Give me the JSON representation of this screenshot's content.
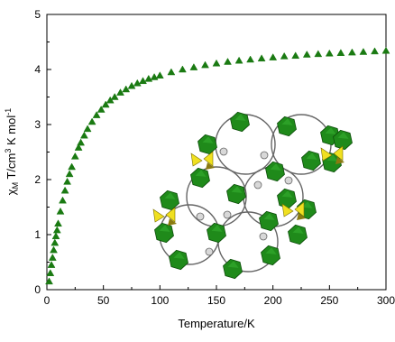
{
  "chart_data": {
    "type": "scatter",
    "title": "",
    "xlabel": "Temperature/K",
    "ylabel_parts": {
      "chi": "χ",
      "sub": "M",
      "mid": " T/cm",
      "sup3": "3",
      "tail": " K mol",
      "supm1": "-1"
    },
    "xlim": [
      0,
      300
    ],
    "ylim": [
      0,
      5
    ],
    "x_ticks": [
      "0",
      "50",
      "100",
      "150",
      "200",
      "250",
      "300"
    ],
    "y_ticks": [
      "0",
      "1",
      "2",
      "3",
      "4",
      "5"
    ],
    "grid": false,
    "legend": "none",
    "marker": "triangle",
    "series": [
      {
        "color": "#1a7a12",
        "x": [
          2,
          3,
          4,
          5,
          6,
          7,
          8,
          9,
          10,
          12,
          14,
          16,
          18,
          20,
          22,
          25,
          28,
          30,
          33,
          36,
          40,
          44,
          48,
          52,
          56,
          60,
          65,
          70,
          75,
          80,
          85,
          90,
          95,
          100,
          110,
          120,
          130,
          140,
          150,
          160,
          170,
          180,
          190,
          200,
          210,
          220,
          230,
          240,
          250,
          260,
          270,
          280,
          290,
          300
        ],
        "y": [
          0.15,
          0.3,
          0.45,
          0.58,
          0.72,
          0.85,
          0.97,
          1.08,
          1.2,
          1.42,
          1.62,
          1.8,
          1.96,
          2.1,
          2.23,
          2.42,
          2.58,
          2.67,
          2.8,
          2.92,
          3.05,
          3.17,
          3.27,
          3.36,
          3.44,
          3.5,
          3.58,
          3.64,
          3.7,
          3.75,
          3.79,
          3.83,
          3.86,
          3.89,
          3.95,
          4.0,
          4.04,
          4.08,
          4.11,
          4.14,
          4.16,
          4.18,
          4.2,
          4.22,
          4.24,
          4.25,
          4.27,
          4.28,
          4.29,
          4.3,
          4.31,
          4.32,
          4.33,
          4.34
        ]
      }
    ]
  },
  "inset": {
    "type": "polyhedral-structure-image",
    "colors": {
      "green": "#1f8a1a",
      "yellow": "#f0e020",
      "bridge": "#d8d8d8"
    }
  }
}
